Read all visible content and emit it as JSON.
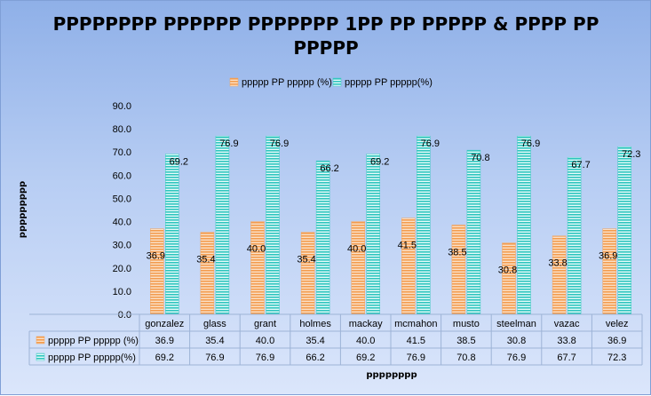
{
  "chart_data": {
    "type": "bar",
    "title_line1": "PPPPPPPP PPPPPP PPPPPPP 1PP PP PPPPP & PPPP PP",
    "title_line2": "PPPPP",
    "xlabel": "pppppppp",
    "ylabel": "ppppppppp",
    "categories": [
      "gonzalez",
      "glass",
      "grant",
      "holmes",
      "mackay",
      "mcmahon",
      "musto",
      "steelman",
      "vazac",
      "velez"
    ],
    "series": [
      {
        "name": "ppppp PP ppppp (%)",
        "color": "#f5b37a",
        "values": [
          36.9,
          35.4,
          40.0,
          35.4,
          40.0,
          41.5,
          38.5,
          30.8,
          33.8,
          36.9
        ]
      },
      {
        "name": "ppppp PP ppppp(%)",
        "color": "#4fd3cd",
        "values": [
          69.2,
          76.9,
          76.9,
          66.2,
          69.2,
          76.9,
          70.8,
          76.9,
          67.7,
          72.3
        ]
      }
    ],
    "ylim": [
      0,
      90
    ],
    "yticks": [
      "0.0",
      "10.0",
      "20.0",
      "30.0",
      "40.0",
      "50.0",
      "60.0",
      "70.0",
      "80.0",
      "90.0"
    ],
    "grid": false,
    "legend_position": "top",
    "data_table": true
  }
}
